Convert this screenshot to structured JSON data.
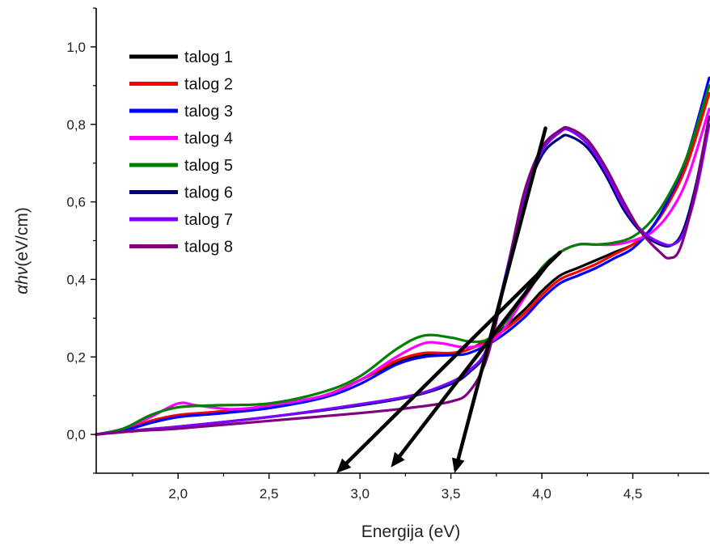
{
  "chart_data": {
    "type": "line",
    "title": "",
    "xlabel": "Energija (eV)",
    "ylabel": "(eV/cm)",
    "ylabel_symbol": "αhν",
    "xlim": [
      1.55,
      4.92
    ],
    "ylim": [
      -0.1,
      1.1
    ],
    "xticks": [
      2.0,
      2.5,
      3.0,
      3.5,
      4.0,
      4.5
    ],
    "xtick_labels": [
      "2,0",
      "2,5",
      "3,0",
      "3,5",
      "4,0",
      "4,5"
    ],
    "yticks": [
      0.0,
      0.2,
      0.4,
      0.6,
      0.8,
      1.0
    ],
    "ytick_labels": [
      "0,0",
      "0,2",
      "0,4",
      "0,6",
      "0,8",
      "1,0"
    ],
    "grid": false,
    "legend_position": "top-left",
    "series": [
      {
        "name": "talog 1",
        "color": "#000000",
        "points": [
          [
            1.55,
            0.0
          ],
          [
            1.7,
            0.01
          ],
          [
            1.85,
            0.03
          ],
          [
            2.0,
            0.045
          ],
          [
            2.2,
            0.055
          ],
          [
            2.5,
            0.07
          ],
          [
            2.8,
            0.1
          ],
          [
            3.0,
            0.14
          ],
          [
            3.2,
            0.185
          ],
          [
            3.35,
            0.205
          ],
          [
            3.5,
            0.21
          ],
          [
            3.6,
            0.22
          ],
          [
            3.75,
            0.26
          ],
          [
            3.9,
            0.32
          ],
          [
            4.0,
            0.37
          ],
          [
            4.1,
            0.41
          ],
          [
            4.2,
            0.43
          ],
          [
            4.3,
            0.45
          ],
          [
            4.4,
            0.47
          ],
          [
            4.5,
            0.49
          ],
          [
            4.6,
            0.53
          ],
          [
            4.7,
            0.6
          ],
          [
            4.8,
            0.7
          ],
          [
            4.92,
            0.88
          ]
        ]
      },
      {
        "name": "talog 2",
        "color": "#ff0000",
        "points": [
          [
            1.55,
            0.0
          ],
          [
            1.7,
            0.012
          ],
          [
            1.85,
            0.035
          ],
          [
            2.0,
            0.05
          ],
          [
            2.2,
            0.058
          ],
          [
            2.5,
            0.072
          ],
          [
            2.8,
            0.1
          ],
          [
            3.0,
            0.14
          ],
          [
            3.2,
            0.19
          ],
          [
            3.35,
            0.21
          ],
          [
            3.5,
            0.21
          ],
          [
            3.6,
            0.22
          ],
          [
            3.75,
            0.255
          ],
          [
            3.9,
            0.31
          ],
          [
            4.0,
            0.36
          ],
          [
            4.1,
            0.4
          ],
          [
            4.2,
            0.42
          ],
          [
            4.3,
            0.44
          ],
          [
            4.4,
            0.465
          ],
          [
            4.5,
            0.49
          ],
          [
            4.6,
            0.53
          ],
          [
            4.7,
            0.6
          ],
          [
            4.8,
            0.7
          ],
          [
            4.92,
            0.88
          ]
        ]
      },
      {
        "name": "talog 3",
        "color": "#0000ff",
        "points": [
          [
            1.55,
            0.0
          ],
          [
            1.7,
            0.01
          ],
          [
            1.85,
            0.03
          ],
          [
            2.0,
            0.045
          ],
          [
            2.2,
            0.053
          ],
          [
            2.5,
            0.068
          ],
          [
            2.8,
            0.095
          ],
          [
            3.0,
            0.13
          ],
          [
            3.2,
            0.18
          ],
          [
            3.35,
            0.2
          ],
          [
            3.5,
            0.205
          ],
          [
            3.6,
            0.21
          ],
          [
            3.75,
            0.245
          ],
          [
            3.9,
            0.3
          ],
          [
            4.0,
            0.35
          ],
          [
            4.1,
            0.39
          ],
          [
            4.2,
            0.41
          ],
          [
            4.3,
            0.43
          ],
          [
            4.4,
            0.455
          ],
          [
            4.5,
            0.48
          ],
          [
            4.6,
            0.53
          ],
          [
            4.7,
            0.61
          ],
          [
            4.8,
            0.72
          ],
          [
            4.92,
            0.92
          ]
        ]
      },
      {
        "name": "talog 4",
        "color": "#ff00ff",
        "points": [
          [
            1.55,
            0.0
          ],
          [
            1.7,
            0.015
          ],
          [
            1.85,
            0.045
          ],
          [
            2.0,
            0.08
          ],
          [
            2.1,
            0.075
          ],
          [
            2.3,
            0.065
          ],
          [
            2.5,
            0.075
          ],
          [
            2.8,
            0.1
          ],
          [
            3.0,
            0.14
          ],
          [
            3.2,
            0.2
          ],
          [
            3.35,
            0.235
          ],
          [
            3.45,
            0.235
          ],
          [
            3.6,
            0.225
          ],
          [
            3.75,
            0.25
          ],
          [
            3.9,
            0.35
          ],
          [
            4.0,
            0.42
          ],
          [
            4.1,
            0.47
          ],
          [
            4.2,
            0.49
          ],
          [
            4.3,
            0.49
          ],
          [
            4.4,
            0.49
          ],
          [
            4.5,
            0.5
          ],
          [
            4.6,
            0.52
          ],
          [
            4.7,
            0.57
          ],
          [
            4.8,
            0.66
          ],
          [
            4.92,
            0.84
          ]
        ]
      },
      {
        "name": "talog 5",
        "color": "#008000",
        "points": [
          [
            1.55,
            0.0
          ],
          [
            1.7,
            0.015
          ],
          [
            1.85,
            0.05
          ],
          [
            2.0,
            0.07
          ],
          [
            2.2,
            0.075
          ],
          [
            2.5,
            0.08
          ],
          [
            2.8,
            0.11
          ],
          [
            3.0,
            0.15
          ],
          [
            3.2,
            0.22
          ],
          [
            3.35,
            0.255
          ],
          [
            3.5,
            0.25
          ],
          [
            3.6,
            0.24
          ],
          [
            3.7,
            0.245
          ],
          [
            3.8,
            0.29
          ],
          [
            3.9,
            0.36
          ],
          [
            4.0,
            0.43
          ],
          [
            4.1,
            0.47
          ],
          [
            4.2,
            0.49
          ],
          [
            4.3,
            0.49
          ],
          [
            4.4,
            0.495
          ],
          [
            4.5,
            0.51
          ],
          [
            4.6,
            0.55
          ],
          [
            4.7,
            0.62
          ],
          [
            4.8,
            0.72
          ],
          [
            4.92,
            0.9
          ]
        ]
      },
      {
        "name": "talog 6",
        "color": "#000080",
        "points": [
          [
            1.55,
            0.0
          ],
          [
            1.8,
            0.012
          ],
          [
            2.0,
            0.02
          ],
          [
            2.5,
            0.045
          ],
          [
            3.0,
            0.075
          ],
          [
            3.3,
            0.1
          ],
          [
            3.5,
            0.13
          ],
          [
            3.6,
            0.16
          ],
          [
            3.7,
            0.22
          ],
          [
            3.8,
            0.4
          ],
          [
            3.9,
            0.6
          ],
          [
            4.0,
            0.72
          ],
          [
            4.1,
            0.765
          ],
          [
            4.15,
            0.77
          ],
          [
            4.25,
            0.74
          ],
          [
            4.35,
            0.67
          ],
          [
            4.45,
            0.58
          ],
          [
            4.55,
            0.52
          ],
          [
            4.65,
            0.49
          ],
          [
            4.72,
            0.49
          ],
          [
            4.78,
            0.53
          ],
          [
            4.85,
            0.65
          ],
          [
            4.92,
            0.82
          ]
        ]
      },
      {
        "name": "talog 7",
        "color": "#8000ff",
        "points": [
          [
            1.55,
            0.0
          ],
          [
            1.8,
            0.012
          ],
          [
            2.0,
            0.02
          ],
          [
            2.5,
            0.045
          ],
          [
            3.0,
            0.078
          ],
          [
            3.3,
            0.102
          ],
          [
            3.5,
            0.135
          ],
          [
            3.6,
            0.165
          ],
          [
            3.7,
            0.225
          ],
          [
            3.8,
            0.41
          ],
          [
            3.9,
            0.61
          ],
          [
            4.0,
            0.73
          ],
          [
            4.1,
            0.78
          ],
          [
            4.15,
            0.785
          ],
          [
            4.25,
            0.75
          ],
          [
            4.35,
            0.68
          ],
          [
            4.45,
            0.59
          ],
          [
            4.55,
            0.525
          ],
          [
            4.65,
            0.495
          ],
          [
            4.72,
            0.49
          ],
          [
            4.78,
            0.52
          ],
          [
            4.85,
            0.63
          ],
          [
            4.92,
            0.8
          ]
        ]
      },
      {
        "name": "talog 8",
        "color": "#800080",
        "points": [
          [
            1.55,
            0.0
          ],
          [
            1.8,
            0.01
          ],
          [
            2.0,
            0.015
          ],
          [
            2.5,
            0.035
          ],
          [
            3.0,
            0.055
          ],
          [
            3.3,
            0.07
          ],
          [
            3.5,
            0.085
          ],
          [
            3.6,
            0.11
          ],
          [
            3.7,
            0.2
          ],
          [
            3.8,
            0.4
          ],
          [
            3.9,
            0.62
          ],
          [
            4.0,
            0.74
          ],
          [
            4.1,
            0.785
          ],
          [
            4.15,
            0.79
          ],
          [
            4.25,
            0.76
          ],
          [
            4.35,
            0.69
          ],
          [
            4.45,
            0.6
          ],
          [
            4.55,
            0.52
          ],
          [
            4.65,
            0.47
          ],
          [
            4.7,
            0.455
          ],
          [
            4.76,
            0.48
          ],
          [
            4.84,
            0.62
          ],
          [
            4.92,
            0.82
          ]
        ]
      }
    ],
    "annotations": [
      {
        "type": "arrow",
        "color": "#000000",
        "from": [
          4.1,
          0.47
        ],
        "to": [
          2.87,
          -0.1
        ]
      },
      {
        "type": "arrow",
        "color": "#000000",
        "from": [
          4.05,
          0.45
        ],
        "to": [
          3.17,
          -0.085
        ]
      },
      {
        "type": "arrow",
        "color": "#000000",
        "from": [
          4.02,
          0.79
        ],
        "to": [
          3.52,
          -0.1
        ]
      }
    ]
  }
}
